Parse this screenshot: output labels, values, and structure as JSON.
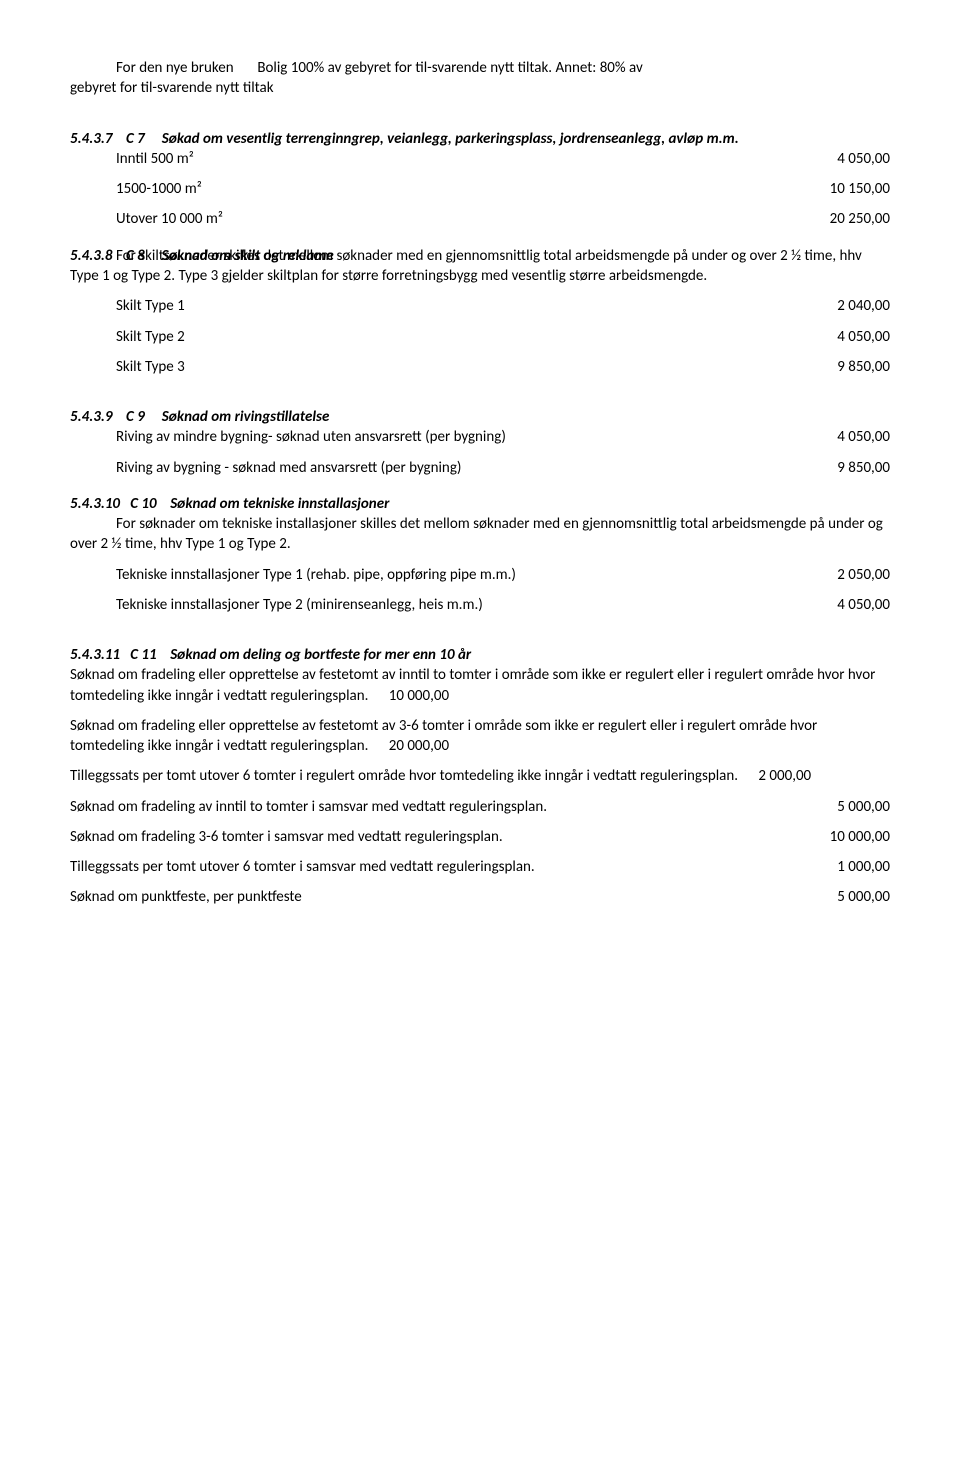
{
  "intro": {
    "line1_left": "For den nye bruken",
    "line1_right": "Bolig 100% av gebyret for til-svarende nytt tiltak. Annet: 80% av",
    "line2": "gebyret for til-svarende nytt tiltak"
  },
  "s5437": {
    "heading_num": "5.4.3.7",
    "heading_code": "C 7",
    "heading_text": "Søkad om vesentlig terrenginngrep, veianlegg, parkeringsplass, jordrenseanlegg, avløp m.m.",
    "rows": [
      {
        "label": "Inntil 500 m²",
        "value": "4 050,00"
      },
      {
        "label": "1500-1000 m²",
        "value": "10 150,00"
      },
      {
        "label": "Utover 10 000 m²",
        "value": "20 250,00"
      }
    ]
  },
  "s5438": {
    "heading_num": "5.4.3.8",
    "heading_code": "C 8",
    "heading_text": "Søknad om skilt og reklame",
    "body": "For skiltsøknader skilles det mellom søknader med en gjennomsnittlig total arbeidsmengde på under og over 2 ½ time, hhv Type 1 og Type 2. Type 3 gjelder skiltplan for større forretningsbygg med vesentlig større arbeidsmengde.",
    "rows": [
      {
        "label": "Skilt Type 1",
        "value": "2 040,00"
      },
      {
        "label": "Skilt Type 2",
        "value": "4 050,00"
      },
      {
        "label": "Skilt Type 3",
        "value": "9 850,00"
      }
    ]
  },
  "s5439": {
    "heading_num": "5.4.3.9",
    "heading_code": "C 9",
    "heading_text": "Søknad om rivingstillatelse",
    "rows": [
      {
        "label": "Riving av mindre bygning- søknad uten ansvarsrett (per bygning)",
        "value": "4 050,00"
      },
      {
        "label": "Riving av bygning - søknad med ansvarsrett (per bygning)",
        "value": "9 850,00"
      }
    ]
  },
  "s54310": {
    "heading_num": "5.4.3.10",
    "heading_code": "C 10",
    "heading_text": "Søknad om tekniske innstallasjoner",
    "body": "For søknader om tekniske installasjoner skilles det mellom søknader med en gjennomsnittlig total arbeidsmengde på under og over 2 ½ time, hhv Type 1 og Type 2.",
    "rows": [
      {
        "label": "Tekniske innstallasjoner Type 1 (rehab. pipe, oppføring pipe m.m.)",
        "value": "2 050,00"
      },
      {
        "label": "Tekniske innstallasjoner Type 2 (minirenseanlegg, heis m.m.)",
        "value": "4 050,00"
      }
    ]
  },
  "s54311": {
    "heading_num": "5.4.3.11",
    "heading_code": "C 11",
    "heading_text": "Søknad om deling og bortfeste for mer enn 10 år",
    "p1_text": "Søknad om fradeling eller opprettelse av festetomt av inntil to tomter i område som ikke er regulert eller i regulert område hvor hvor tomtedeling ikke inngår i vedtatt reguleringsplan.",
    "p1_value": "10 000,00",
    "p2_text": "Søknad om fradeling eller opprettelse av festetomt av 3-6 tomter i område som ikke er regulert eller i regulert område hvor tomtedeling ikke inngår i vedtatt reguleringsplan.",
    "p2_value": "20 000,00",
    "p3_text": "Tilleggssats per tomt utover 6 tomter  i regulert område hvor tomtedeling ikke inngår i vedtatt reguleringsplan.",
    "p3_value": "2 000,00",
    "rows": [
      {
        "label": "Søknad om fradeling av inntil to tomter i samsvar med vedtatt reguleringsplan.",
        "value": "5 000,00"
      },
      {
        "label": "Søknad om fradeling 3-6 tomter i samsvar med vedtatt reguleringsplan.",
        "value": "10 000,00"
      },
      {
        "label": "Tilleggssats per tomt utover 6 tomter  i samsvar med vedtatt reguleringsplan.",
        "value": "1 000,00"
      },
      {
        "label": "Søknad om punktfeste, per punktfeste",
        "value": "5 000,00"
      }
    ]
  }
}
